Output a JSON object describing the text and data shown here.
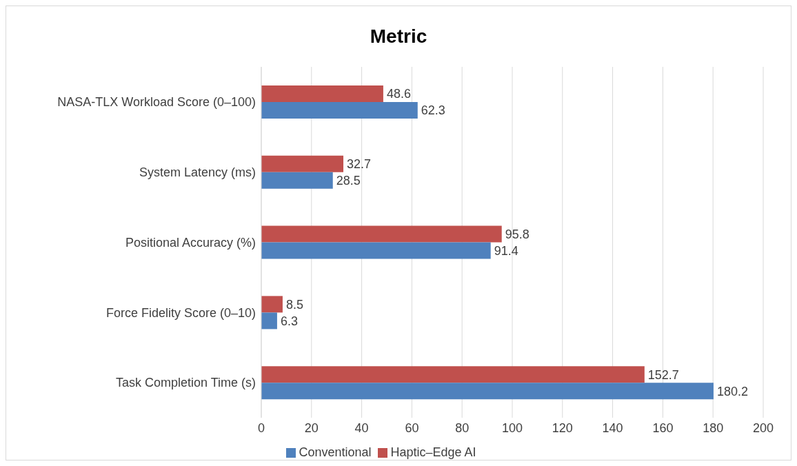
{
  "chart_data": {
    "type": "bar",
    "orientation": "horizontal",
    "title": "Metric",
    "categories": [
      "NASA-TLX Workload Score (0–100)",
      "System Latency (ms)",
      "Positional Accuracy (%)",
      "Force Fidelity Score (0–10)",
      "Task Completion Time (s)"
    ],
    "series": [
      {
        "name": "Haptic–Edge AI",
        "color": "#c0504d",
        "values": [
          48.6,
          32.7,
          95.8,
          8.5,
          152.7
        ]
      },
      {
        "name": "Conventional",
        "color": "#4f81bd",
        "values": [
          62.3,
          28.5,
          91.4,
          6.3,
          180.2
        ]
      }
    ],
    "xlim": [
      0,
      200
    ],
    "xticks": [
      0,
      20,
      40,
      60,
      80,
      100,
      120,
      140,
      160,
      180,
      200
    ],
    "grid": "x",
    "legend": "bottom",
    "data_labels": true
  }
}
